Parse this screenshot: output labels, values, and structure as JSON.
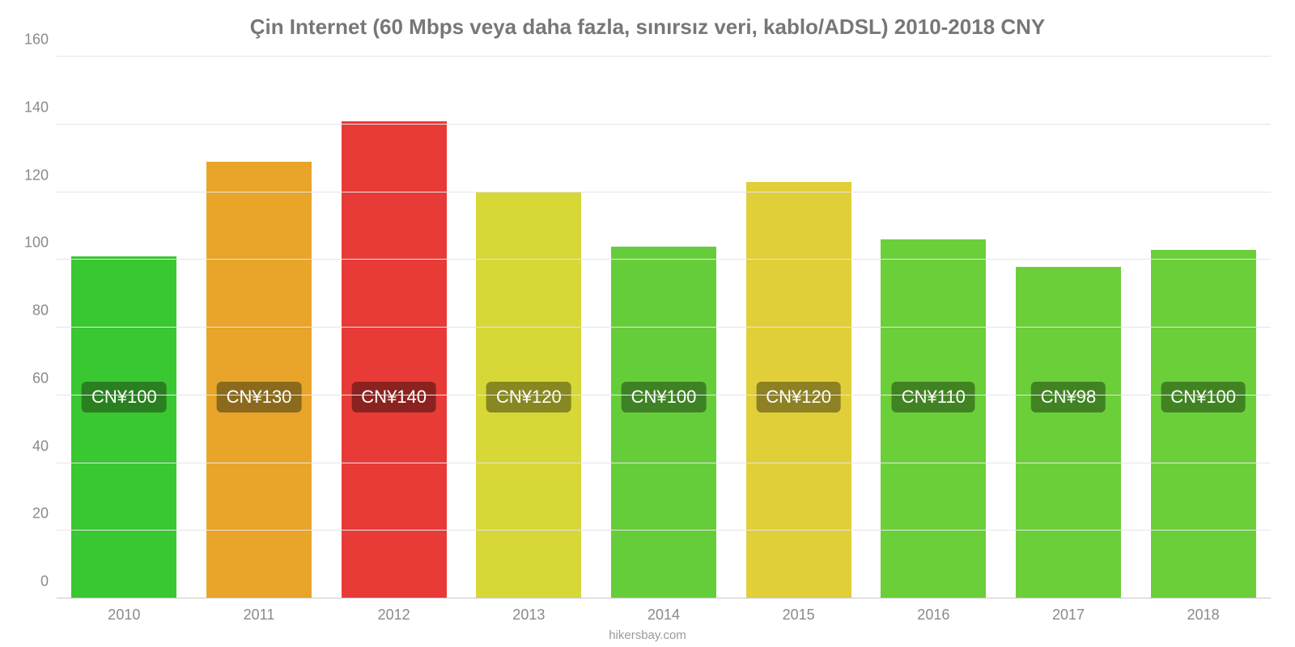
{
  "chart": {
    "type": "bar",
    "title": "Çin Internet (60 Mbps veya daha fazla, sınırsız veri, kablo/ADSL) 2010-2018 CNY",
    "title_fontsize": 26,
    "title_color": "#777777",
    "background_color": "#ffffff",
    "grid_color": "#e5e5e5",
    "axis_line_color": "#c8c8c8",
    "axis_label_color": "#8a8a8a",
    "axis_fontsize": 18,
    "source_text": "hikersbay.com",
    "source_color": "#9a9a9a",
    "ylim": [
      0,
      160
    ],
    "ytick_step": 20,
    "yticks": [
      0,
      20,
      40,
      60,
      80,
      100,
      120,
      140,
      160
    ],
    "bar_width_ratio": 0.78,
    "categories": [
      "2010",
      "2011",
      "2012",
      "2013",
      "2014",
      "2015",
      "2016",
      "2017",
      "2018"
    ],
    "values": [
      101,
      129,
      141,
      120,
      104,
      123,
      106,
      98,
      103
    ],
    "value_labels": [
      "CN¥100",
      "CN¥130",
      "CN¥140",
      "CN¥120",
      "CN¥100",
      "CN¥120",
      "CN¥110",
      "CN¥98",
      "CN¥100"
    ],
    "bar_colors": [
      "#39c732",
      "#e8a52a",
      "#e83b37",
      "#d7d738",
      "#66cd3a",
      "#e0cf39",
      "#6bcf3a",
      "#6bcf3a",
      "#6bcf3a"
    ],
    "label_badge_colors": [
      "#2a7f21",
      "#8b6a1d",
      "#8a2320",
      "#878821",
      "#3f8225",
      "#8d8123",
      "#418323",
      "#418323",
      "#418323"
    ],
    "label_badge_text_color": "#ffffff",
    "label_badge_fontsize": 22,
    "label_badge_y_value": 55
  }
}
